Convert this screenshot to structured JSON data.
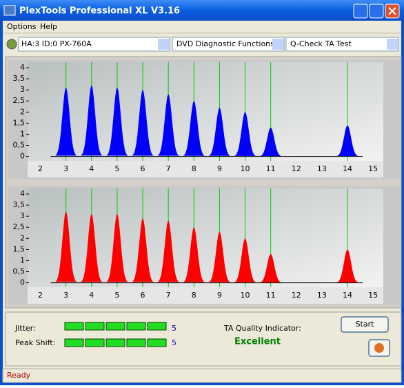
{
  "window": {
    "title": "PlexTools Professional XL V3.16"
  },
  "menu": [
    "Options",
    "Help"
  ],
  "toolbar": {
    "drive": "HA:3 ID:0  PX-760A",
    "function": "DVD Diagnostic Functions",
    "test": "Q-Check TA Test"
  },
  "charts": [
    {
      "type": "histogram",
      "color": "#0000ff",
      "marker_color": "#00cc00",
      "xlim": [
        1.5,
        15.4
      ],
      "xticks": [
        2,
        3,
        4,
        5,
        6,
        7,
        8,
        9,
        10,
        11,
        12,
        13,
        14,
        15
      ],
      "ylim": [
        -0.2,
        4.25
      ],
      "yticks": [
        0,
        {
          "value": 0.5,
          "label": "0,5"
        },
        1,
        {
          "value": 1.5,
          "label": "1,5"
        },
        2,
        {
          "value": 2.5,
          "label": "2,5"
        },
        3,
        {
          "value": 3.5,
          "label": "3,5"
        },
        4
      ],
      "markers": [
        3,
        4,
        5,
        6,
        7,
        8,
        9,
        10,
        11,
        14
      ],
      "peaks": {
        "x": [
          3,
          4,
          5,
          6,
          7,
          8,
          9,
          10,
          11,
          14
        ],
        "y": [
          3.1,
          3.2,
          3.1,
          3.0,
          2.8,
          2.5,
          2.2,
          2.0,
          1.3,
          1.4
        ]
      }
    },
    {
      "type": "histogram",
      "color": "#ff0000",
      "marker_color": "#00cc00",
      "xlim": [
        1.5,
        15.4
      ],
      "xticks": [
        2,
        3,
        4,
        5,
        6,
        7,
        8,
        9,
        10,
        11,
        12,
        13,
        14,
        15
      ],
      "ylim": [
        -0.2,
        4.25
      ],
      "yticks": [
        0,
        {
          "value": 0.5,
          "label": "0,5"
        },
        1,
        {
          "value": 1.5,
          "label": "1,5"
        },
        2,
        {
          "value": 2.5,
          "label": "2,5"
        },
        3,
        {
          "value": 3.5,
          "label": "3,5"
        },
        4
      ],
      "markers": [
        3,
        4,
        5,
        6,
        7,
        8,
        9,
        10,
        11,
        14
      ],
      "peaks": {
        "x": [
          3,
          4,
          5,
          6,
          7,
          8,
          9,
          10,
          11,
          14
        ],
        "y": [
          3.2,
          3.1,
          3.1,
          2.9,
          2.8,
          2.5,
          2.3,
          2.0,
          1.3,
          1.5
        ]
      }
    }
  ],
  "meters": {
    "jitter": {
      "label": "Jitter:",
      "value": 5
    },
    "peak_shift": {
      "label": "Peak Shift:",
      "value": 5
    }
  },
  "quality": {
    "label": "TA Quality Indicator:",
    "result": "Excellent"
  },
  "buttons": {
    "start": "Start"
  },
  "status": "Ready"
}
